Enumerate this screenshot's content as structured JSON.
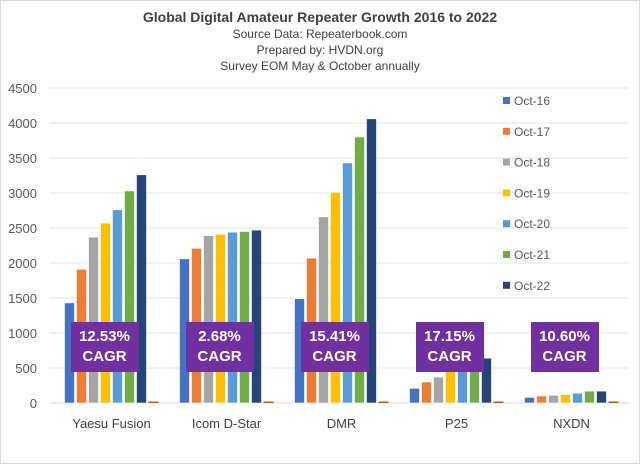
{
  "chart_data": {
    "type": "bar",
    "title": "Global Digital Amateur Repeater Growth 2016 to 2022",
    "subtitles": [
      "Source Data: Repeaterbook.com",
      "Prepared by: HVDN.org",
      "Survey EOM May & October annually"
    ],
    "xlabel": "",
    "ylabel": "",
    "ylim": [
      0,
      4500
    ],
    "yticks": [
      0,
      500,
      1000,
      1500,
      2000,
      2500,
      3000,
      3500,
      4000,
      4500
    ],
    "grid": true,
    "legend_position": "right",
    "categories": [
      "Yaesu Fusion",
      "Icom D-Star",
      "DMR",
      "P25",
      "NXDN"
    ],
    "series": [
      {
        "name": "Oct-16",
        "color": "#4472c4",
        "values": [
          1430,
          2060,
          1490,
          210,
          80
        ]
      },
      {
        "name": "Oct-17",
        "color": "#ed7d31",
        "values": [
          1910,
          2210,
          2070,
          300,
          100
        ]
      },
      {
        "name": "Oct-18",
        "color": "#a5a5a5",
        "values": [
          2370,
          2390,
          2660,
          370,
          110
        ]
      },
      {
        "name": "Oct-19",
        "color": "#ffc000",
        "values": [
          2570,
          2410,
          3010,
          450,
          120
        ]
      },
      {
        "name": "Oct-20",
        "color": "#5b9bd5",
        "values": [
          2760,
          2440,
          3430,
          520,
          140
        ]
      },
      {
        "name": "Oct-21",
        "color": "#70ad47",
        "values": [
          3030,
          2450,
          3800,
          560,
          170
        ]
      },
      {
        "name": "Oct-22",
        "color": "#264478",
        "values": [
          3260,
          2470,
          4060,
          640,
          170
        ]
      },
      {
        "name": "CAGR",
        "color": "#c55a11",
        "show_in_legend": false,
        "values": [
          12.53,
          2.68,
          15.41,
          17.15,
          10.6
        ]
      }
    ],
    "annotations": [
      {
        "category": "Yaesu Fusion",
        "line1": "12.53%",
        "line2": "CAGR"
      },
      {
        "category": "Icom D-Star",
        "line1": "2.68%",
        "line2": "CAGR"
      },
      {
        "category": "DMR",
        "line1": "15.41%",
        "line2": "CAGR"
      },
      {
        "category": "P25",
        "line1": "17.15%",
        "line2": "CAGR"
      },
      {
        "category": "NXDN",
        "line1": "10.60%",
        "line2": "CAGR"
      }
    ],
    "annotation_color": "#7030a0"
  }
}
